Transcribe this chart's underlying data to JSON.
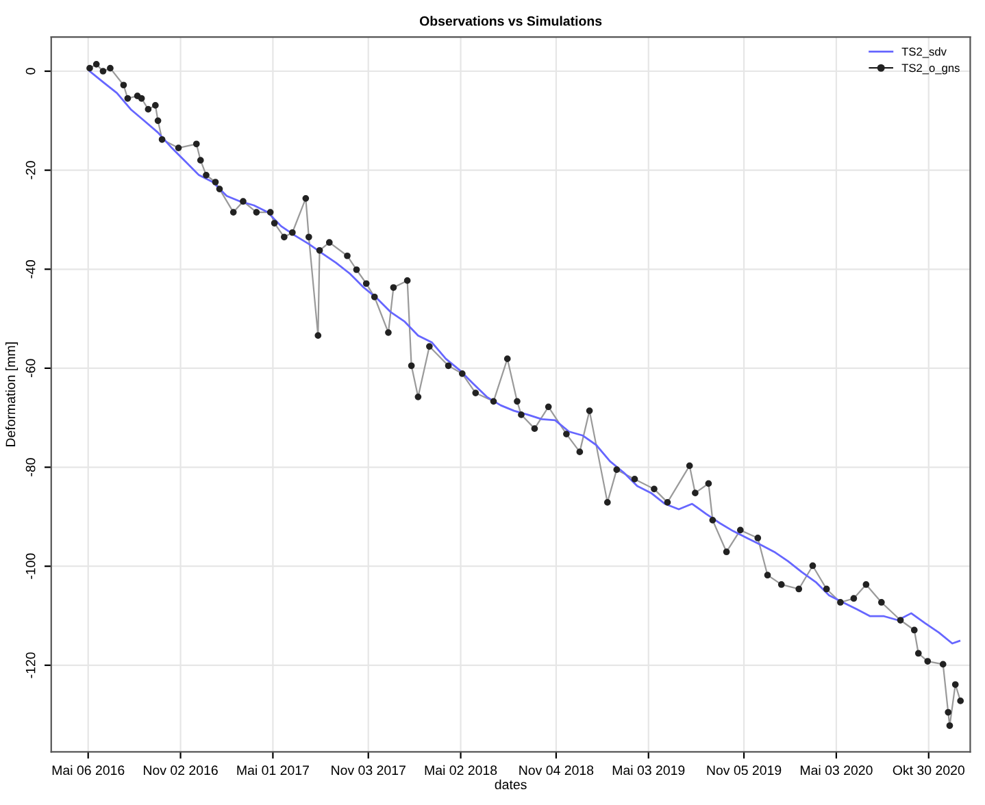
{
  "chart_data": {
    "type": "line",
    "title": "Observations vs Simulations",
    "xlabel": "dates",
    "ylabel": "Deformation [mm]",
    "xlim": [
      "2016-02-24",
      "2021-01-19"
    ],
    "ylim": [
      -137.5,
      6.9
    ],
    "xticks": [
      {
        "value": "2016-05-06",
        "label": "Mai 06 2016"
      },
      {
        "value": "2016-11-02",
        "label": "Nov 02 2016"
      },
      {
        "value": "2017-05-01",
        "label": "Mai 01 2017"
      },
      {
        "value": "2017-11-03",
        "label": "Nov 03 2017"
      },
      {
        "value": "2018-05-02",
        "label": "Mai 02 2018"
      },
      {
        "value": "2018-11-04",
        "label": "Nov 04 2018"
      },
      {
        "value": "2019-05-03",
        "label": "Mai 03 2019"
      },
      {
        "value": "2019-11-05",
        "label": "Nov 05 2019"
      },
      {
        "value": "2020-05-03",
        "label": "Mai 03 2020"
      },
      {
        "value": "2020-10-30",
        "label": "Okt 30 2020"
      }
    ],
    "yticks": [
      0,
      -20,
      -40,
      -60,
      -80,
      -100,
      -120
    ],
    "grid": true,
    "legend": "top right",
    "series": [
      {
        "name": "TS2_sdv",
        "color": "#6666ff",
        "marker": "none",
        "x": [
          "2016-05-09",
          "2016-06-04",
          "2016-07-01",
          "2016-07-28",
          "2016-08-23",
          "2016-09-19",
          "2016-10-16",
          "2016-11-12",
          "2016-12-08",
          "2017-01-04",
          "2017-01-31",
          "2017-02-26",
          "2017-03-25",
          "2017-04-21",
          "2017-05-17",
          "2017-06-13",
          "2017-07-10",
          "2017-08-05",
          "2017-09-01",
          "2017-09-28",
          "2017-10-25",
          "2017-11-20",
          "2017-12-17",
          "2018-01-13",
          "2018-02-08",
          "2018-03-07",
          "2018-04-03",
          "2018-04-29",
          "2018-05-26",
          "2018-06-22",
          "2018-07-19",
          "2018-08-14",
          "2018-09-10",
          "2018-10-07",
          "2018-11-02",
          "2018-11-29",
          "2018-12-26",
          "2019-01-21",
          "2019-02-17",
          "2019-03-16",
          "2019-04-11",
          "2019-05-08",
          "2019-06-04",
          "2019-07-01",
          "2019-07-27",
          "2019-08-23",
          "2019-09-19",
          "2019-10-15",
          "2019-11-11",
          "2019-12-08",
          "2020-01-03",
          "2020-01-30",
          "2020-02-26",
          "2020-03-24",
          "2020-04-19",
          "2020-05-16",
          "2020-06-12",
          "2020-07-08",
          "2020-08-04",
          "2020-08-31",
          "2020-09-26",
          "2020-10-23",
          "2020-11-19",
          "2020-12-15",
          "2020-12-29"
        ],
        "values": [
          0,
          -2.2,
          -4.4,
          -7.7,
          -10.0,
          -12.4,
          -15.5,
          -18.3,
          -21.0,
          -22.4,
          -25.2,
          -26.3,
          -27.1,
          -28.5,
          -31.3,
          -33.2,
          -34.9,
          -36.8,
          -38.7,
          -40.9,
          -43.7,
          -45.9,
          -48.7,
          -50.6,
          -53.4,
          -54.8,
          -58.1,
          -60.3,
          -63.1,
          -65.8,
          -67.5,
          -68.6,
          -69.4,
          -70.3,
          -70.5,
          -72.8,
          -73.6,
          -75.5,
          -78.8,
          -81.1,
          -83.8,
          -85.2,
          -87.4,
          -88.5,
          -87.4,
          -89.4,
          -91.3,
          -92.9,
          -94.3,
          -95.7,
          -97.1,
          -99.0,
          -101.2,
          -103.2,
          -105.9,
          -107.3,
          -108.7,
          -110.1,
          -110.1,
          -110.9,
          -109.5,
          -111.5,
          -113.4,
          -115.6,
          -115.1
        ]
      },
      {
        "name": "TS2_o_gns",
        "color": "#222222",
        "marker": "circle",
        "x": [
          "2016-05-09",
          "2016-05-22",
          "2016-06-04",
          "2016-06-18",
          "2016-07-14",
          "2016-07-22",
          "2016-08-10",
          "2016-08-18",
          "2016-08-31",
          "2016-09-14",
          "2016-09-19",
          "2016-09-27",
          "2016-10-29",
          "2016-12-03",
          "2016-12-11",
          "2016-12-22",
          "2017-01-09",
          "2017-01-17",
          "2017-02-13",
          "2017-03-04",
          "2017-03-30",
          "2017-04-26",
          "2017-05-04",
          "2017-05-23",
          "2017-06-08",
          "2017-07-04",
          "2017-07-10",
          "2017-07-28",
          "2017-07-31",
          "2017-08-19",
          "2017-09-23",
          "2017-10-11",
          "2017-10-30",
          "2017-11-15",
          "2017-12-12",
          "2017-12-22",
          "2018-01-18",
          "2018-01-26",
          "2018-02-08",
          "2018-03-02",
          "2018-04-08",
          "2018-05-05",
          "2018-05-31",
          "2018-07-05",
          "2018-08-01",
          "2018-08-20",
          "2018-08-28",
          "2018-09-23",
          "2018-10-20",
          "2018-11-24",
          "2018-12-20",
          "2019-01-08",
          "2019-02-12",
          "2019-03-02",
          "2019-04-06",
          "2019-05-14",
          "2019-06-09",
          "2019-07-22",
          "2019-08-02",
          "2019-08-28",
          "2019-09-05",
          "2019-10-02",
          "2019-10-29",
          "2019-12-02",
          "2019-12-21",
          "2020-01-17",
          "2020-02-20",
          "2020-03-18",
          "2020-04-14",
          "2020-05-11",
          "2020-06-06",
          "2020-06-30",
          "2020-07-30",
          "2020-09-05",
          "2020-10-02",
          "2020-10-10",
          "2020-10-28",
          "2020-11-27",
          "2020-12-07",
          "2020-12-10",
          "2020-12-21",
          "2020-12-31"
        ],
        "values": [
          0.6,
          1.4,
          0,
          0.6,
          -2.8,
          -5.5,
          -5.0,
          -5.5,
          -7.7,
          -6.9,
          -10.0,
          -13.8,
          -15.5,
          -14.7,
          -18.0,
          -21.0,
          -22.4,
          -23.8,
          -28.5,
          -26.3,
          -28.5,
          -28.5,
          -30.7,
          -33.5,
          -32.6,
          -25.7,
          -33.5,
          -53.4,
          -36.2,
          -34.6,
          -37.3,
          -40.1,
          -42.9,
          -45.6,
          -52.8,
          -43.7,
          -42.3,
          -59.5,
          -65.8,
          -55.6,
          -59.5,
          -61.1,
          -65.0,
          -66.7,
          -58.1,
          -66.7,
          -69.4,
          -72.2,
          -67.8,
          -73.3,
          -76.9,
          -68.6,
          -87.1,
          -80.5,
          -82.4,
          -84.4,
          -87.1,
          -79.7,
          -85.2,
          -83.3,
          -90.7,
          -97.1,
          -92.7,
          -94.3,
          -101.8,
          -103.7,
          -104.6,
          -99.9,
          -104.6,
          -107.3,
          -106.5,
          -103.7,
          -107.3,
          -110.9,
          -112.9,
          -117.6,
          -119.2,
          -119.8,
          -129.5,
          -132.2,
          -123.9,
          -127.2
        ]
      }
    ]
  }
}
